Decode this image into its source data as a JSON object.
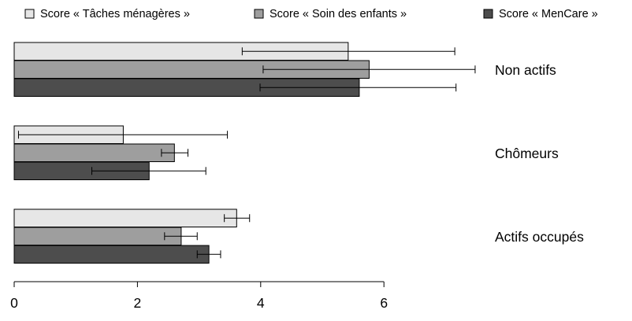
{
  "chart_data": {
    "type": "bar",
    "orientation": "horizontal",
    "categories": [
      "Non actifs",
      "Chômeurs",
      "Actifs occupés"
    ],
    "series": [
      {
        "name": "Score « Tâches ménagères »",
        "color": "#e6e6e6",
        "values": [
          5.42,
          1.77,
          3.61
        ],
        "error_low": [
          3.7,
          0.07,
          3.41
        ],
        "error_high": [
          7.15,
          3.46,
          3.82
        ]
      },
      {
        "name": "Score « Soin des enfants »",
        "color": "#9e9e9e",
        "values": [
          5.76,
          2.6,
          2.71
        ],
        "error_low": [
          4.04,
          2.39,
          2.44
        ],
        "error_high": [
          7.48,
          2.82,
          2.97
        ]
      },
      {
        "name": "Score « MenCare »",
        "color": "#4d4d4d",
        "values": [
          5.6,
          2.19,
          3.16
        ],
        "error_low": [
          3.99,
          1.26,
          2.97
        ],
        "error_high": [
          7.17,
          3.11,
          3.35
        ]
      }
    ],
    "xlim": [
      0,
      6
    ],
    "xticks": [
      "0",
      "2",
      "4",
      "6"
    ],
    "legend_position": "top",
    "grid": false
  }
}
